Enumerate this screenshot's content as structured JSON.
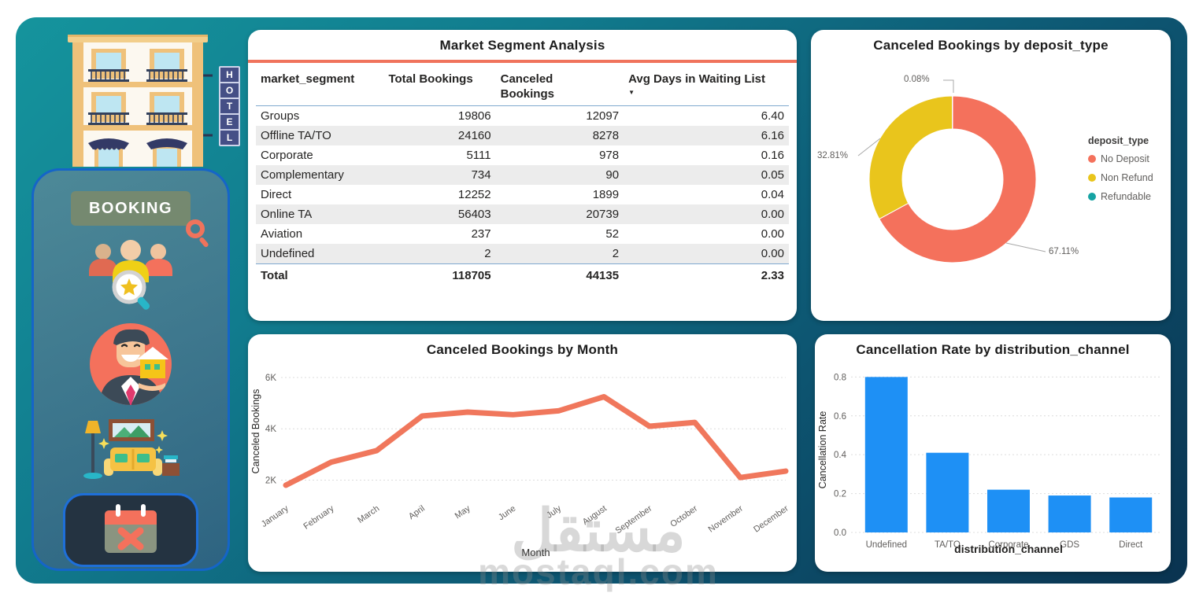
{
  "sidebar": {
    "hotel_sign": "HOTEL",
    "booking_label": "BOOKING"
  },
  "watermark": {
    "arabic": "مستقل",
    "domain": "mostaql.com"
  },
  "table_card": {
    "title": "Market Segment Analysis",
    "columns": [
      "market_segment",
      "Total Bookings",
      "Canceled Bookings",
      "Avg Days in Waiting List"
    ],
    "sort_arrow": "▼",
    "rows": [
      [
        "Groups",
        "19806",
        "12097",
        "6.40"
      ],
      [
        "Offline TA/TO",
        "24160",
        "8278",
        "6.16"
      ],
      [
        "Corporate",
        "5111",
        "978",
        "0.16"
      ],
      [
        "Complementary",
        "734",
        "90",
        "0.05"
      ],
      [
        "Direct",
        "12252",
        "1899",
        "0.04"
      ],
      [
        "Online TA",
        "56403",
        "20739",
        "0.00"
      ],
      [
        "Aviation",
        "237",
        "52",
        "0.00"
      ],
      [
        "Undefined",
        "2",
        "2",
        "0.00"
      ]
    ],
    "total": [
      "Total",
      "118705",
      "44135",
      "2.33"
    ]
  },
  "chart_data": [
    {
      "type": "pie",
      "subtype": "donut",
      "title": "Canceled Bookings by deposit_type",
      "legend_title": "deposit_type",
      "legend_position": "right",
      "slices": [
        {
          "label": "No Deposit",
          "pct": 67.11,
          "pct_label": "67.11%",
          "color": "#F4715C"
        },
        {
          "label": "Non Refund",
          "pct": 32.81,
          "pct_label": "32.81%",
          "color": "#E9C51C"
        },
        {
          "label": "Refundable",
          "pct": 0.08,
          "pct_label": "0.08%",
          "color": "#16A3A3"
        }
      ]
    },
    {
      "type": "line",
      "title": "Canceled Bookings by Month",
      "x": [
        "January",
        "February",
        "March",
        "April",
        "May",
        "June",
        "July",
        "August",
        "September",
        "October",
        "November",
        "December"
      ],
      "values": [
        1800,
        2700,
        3150,
        4500,
        4650,
        4550,
        4700,
        5250,
        4100,
        4250,
        2100,
        2350
      ],
      "xlabel": "Month",
      "ylabel": "Canceled Bookings",
      "ylim": [
        1400,
        6400
      ],
      "yticks": [
        2000,
        4000,
        6000
      ],
      "ytick_labels": [
        "2K",
        "4K",
        "6K"
      ],
      "grid": true,
      "color": "#F0775C"
    },
    {
      "type": "bar",
      "title": "Cancellation Rate by distribution_channel",
      "categories": [
        "Undefined",
        "TA/TO",
        "Corporate",
        "GDS",
        "Direct"
      ],
      "values": [
        0.8,
        0.41,
        0.22,
        0.19,
        0.18
      ],
      "xlabel": "distribution_channel",
      "ylabel": "Cancellation Rate",
      "ylim": [
        0,
        0.85
      ],
      "yticks": [
        0.0,
        0.2,
        0.4,
        0.6,
        0.8
      ],
      "ytick_labels": [
        "0.0",
        "0.2",
        "0.4",
        "0.6",
        "0.8"
      ],
      "grid": true,
      "color": "#1E90F5"
    }
  ]
}
